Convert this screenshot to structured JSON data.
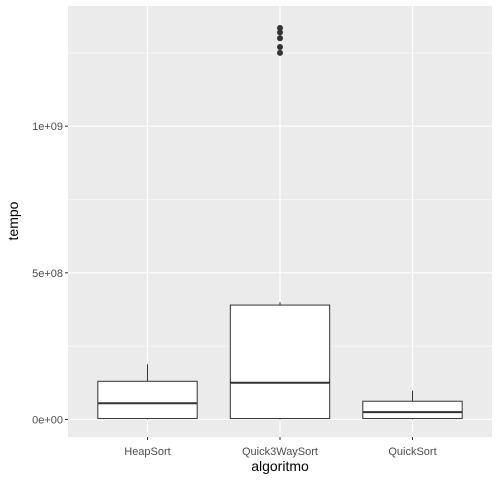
{
  "chart_data": {
    "type": "boxplot",
    "xlabel": "algoritmo",
    "ylabel": "tempo",
    "categories": [
      "HeapSort",
      "Quick3WaySort",
      "QuickSort"
    ],
    "y_ticks": [
      {
        "value": 0,
        "label": "0e+00"
      },
      {
        "value": 500000000,
        "label": "5e+08"
      },
      {
        "value": 1000000000,
        "label": "1e+09"
      }
    ],
    "ylim": [
      -60000000,
      1410000000
    ],
    "grid": true,
    "boxes": [
      {
        "category": "HeapSort",
        "min": 0,
        "q1": 3000000,
        "median": 55000000,
        "q3": 130000000,
        "max": 188000000,
        "outliers": []
      },
      {
        "category": "Quick3WaySort",
        "min": 0,
        "q1": 3000000,
        "median": 125000000,
        "q3": 390000000,
        "max": 400000000,
        "outliers": [
          1250000000,
          1270000000,
          1300000000,
          1320000000,
          1335000000
        ]
      },
      {
        "category": "QuickSort",
        "min": 0,
        "q1": 3000000,
        "median": 25000000,
        "q3": 62000000,
        "max": 98000000,
        "outliers": []
      }
    ],
    "colors": {
      "panel": "#ebebeb",
      "grid_major": "#ffffff",
      "box_fill": "#ffffff",
      "box_line": "#333333"
    }
  }
}
